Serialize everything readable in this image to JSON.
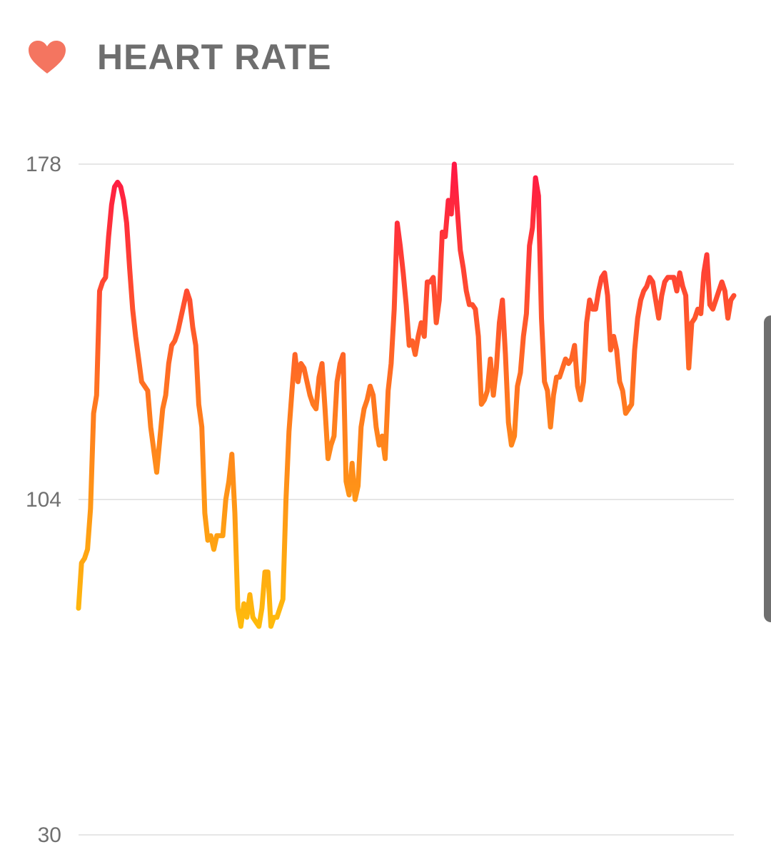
{
  "header": {
    "title": "HEART RATE",
    "icon": "heart-icon",
    "icon_color": "#f47560"
  },
  "chart_data": {
    "type": "line",
    "title": "HEART RATE",
    "xlabel": "",
    "ylabel": "",
    "ylim": [
      30,
      178
    ],
    "yticks": [
      178,
      104,
      30
    ],
    "grid": true,
    "gradient": {
      "low": "#ffc20a",
      "mid": "#ff7a1f",
      "high": "#ff1744"
    },
    "series": [
      {
        "values": [
          80,
          90,
          91,
          93,
          102,
          123,
          127,
          150,
          152,
          153,
          162,
          169,
          173,
          174,
          173,
          170,
          165,
          155,
          146,
          140,
          135,
          130,
          129,
          128,
          120,
          115,
          110,
          117,
          124,
          127,
          134,
          138,
          139,
          141,
          144,
          147,
          150,
          148,
          142,
          138,
          125,
          120,
          101,
          95,
          96,
          93,
          96,
          96,
          96,
          104,
          108,
          114,
          101,
          80,
          76,
          81,
          78,
          83,
          78,
          77,
          76,
          80,
          88,
          88,
          76,
          78,
          78,
          80,
          82,
          104,
          119,
          128,
          136,
          130,
          134,
          133,
          130,
          127,
          125,
          124,
          131,
          134,
          124,
          113,
          116,
          118,
          130,
          134,
          136,
          108,
          105,
          112,
          104,
          107,
          120,
          124,
          126,
          129,
          127,
          120,
          116,
          118,
          113,
          128,
          134,
          146,
          165,
          160,
          154,
          147,
          138,
          139,
          136,
          140,
          143,
          140,
          152,
          152,
          153,
          143,
          148,
          163,
          162,
          170,
          167,
          178,
          168,
          159,
          155,
          150,
          147,
          147,
          146,
          140,
          125,
          126,
          128,
          135,
          127,
          133,
          143,
          148,
          136,
          121,
          116,
          118,
          129,
          132,
          140,
          145,
          160,
          164,
          175,
          171,
          144,
          130,
          128,
          120,
          127,
          131,
          131,
          133,
          135,
          134,
          135,
          138,
          129,
          126,
          130,
          143,
          148,
          146,
          146,
          150,
          153,
          154,
          149,
          137,
          140,
          137,
          130,
          128,
          123,
          124,
          125,
          137,
          144,
          148,
          150,
          151,
          153,
          152,
          148,
          144,
          149,
          152,
          153,
          153,
          153,
          150,
          154,
          151,
          149,
          133,
          143,
          144,
          146,
          145,
          154,
          158,
          147,
          146,
          148,
          150,
          152,
          150,
          144,
          148,
          149
        ]
      }
    ]
  }
}
